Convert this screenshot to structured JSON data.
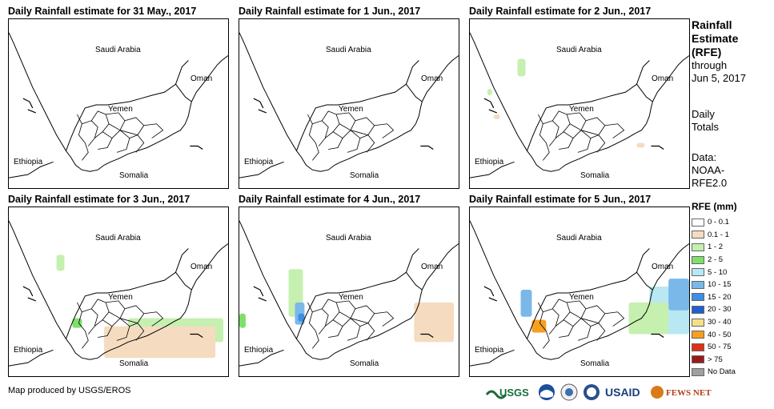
{
  "panels": [
    {
      "title": "Daily Rainfall estimate for 31 May., 2017",
      "level": 0
    },
    {
      "title": "Daily Rainfall estimate for 1 Jun., 2017",
      "level": 0
    },
    {
      "title": "Daily Rainfall estimate for 2 Jun., 2017",
      "level": 1
    },
    {
      "title": "Daily Rainfall estimate for 3 Jun., 2017",
      "level": 2
    },
    {
      "title": "Daily Rainfall estimate for 4 Jun., 2017",
      "level": 3
    },
    {
      "title": "Daily Rainfall estimate for 5 Jun., 2017",
      "level": 4
    }
  ],
  "map_labels": {
    "saudi": "Saudi Arabia",
    "oman": "Oman",
    "yemen": "Yemen",
    "ethiopia": "Ethiopia",
    "somalia": "Somalia"
  },
  "side": {
    "title1": "Rainfall",
    "title2": "Estimate",
    "title3": "(RFE)",
    "through": "through",
    "date": "Jun 5, 2017",
    "daily1": "Daily",
    "daily2": "Totals",
    "data1": "Data:",
    "data2": "NOAA-",
    "data3": "RFE2.0"
  },
  "legend": {
    "title": "RFE (mm)",
    "items": [
      {
        "label": "0 - 0.1",
        "color": "#ffffff"
      },
      {
        "label": "0.1 - 1",
        "color": "#f5dcc0"
      },
      {
        "label": "1 - 2",
        "color": "#c5f0b0"
      },
      {
        "label": "2 - 5",
        "color": "#7ee06a"
      },
      {
        "label": "5 - 10",
        "color": "#b8e8f4"
      },
      {
        "label": "10 - 15",
        "color": "#7ab8ea"
      },
      {
        "label": "15 - 20",
        "color": "#3f8de4"
      },
      {
        "label": "20 - 30",
        "color": "#1f5fd0"
      },
      {
        "label": "30 - 40",
        "color": "#f5e08a"
      },
      {
        "label": "40 - 50",
        "color": "#f5a020"
      },
      {
        "label": "50 - 75",
        "color": "#e0301a"
      },
      {
        "label": "> 75",
        "color": "#9a1a1a"
      },
      {
        "label": "No Data",
        "color": "#a0a0a0"
      }
    ]
  },
  "credit": "Map produced by USGS/EROS",
  "logos": {
    "usgs": "USGS",
    "usaid": "USAID",
    "fews": "FEWS NET"
  }
}
